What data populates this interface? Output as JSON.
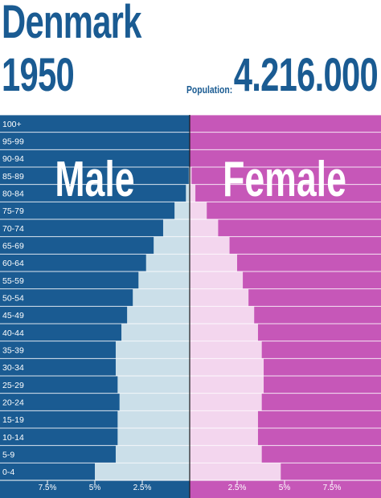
{
  "header": {
    "country": "Denmark",
    "year": "1950",
    "population_label": "Population:",
    "population_value": "4.216.000"
  },
  "colors": {
    "male_bg": "#1a5b92",
    "female_bg": "#c657b8",
    "male_fill": "#cbdfe9",
    "female_fill": "#f3d6ee",
    "gridline": "#ffffff"
  },
  "chart_data": {
    "type": "bar",
    "orientation": "horizontal",
    "layout": "population-pyramid",
    "categories": [
      "0-4",
      "5-9",
      "10-14",
      "15-19",
      "20-24",
      "25-29",
      "30-34",
      "35-39",
      "40-44",
      "45-49",
      "50-54",
      "55-59",
      "60-64",
      "65-69",
      "70-74",
      "75-79",
      "80-84",
      "85-89",
      "90-94",
      "95-99",
      "100+"
    ],
    "series": [
      {
        "name": "Male",
        "side": "left",
        "values": [
          5.0,
          3.9,
          3.8,
          3.8,
          3.7,
          3.8,
          3.9,
          3.9,
          3.6,
          3.3,
          3.0,
          2.7,
          2.3,
          1.9,
          1.4,
          0.8,
          0.2,
          0.05,
          0.01,
          0.0,
          0.0
        ]
      },
      {
        "name": "Female",
        "side": "right",
        "values": [
          4.8,
          3.8,
          3.6,
          3.6,
          3.8,
          3.9,
          3.9,
          3.8,
          3.6,
          3.4,
          3.1,
          2.8,
          2.5,
          2.1,
          1.5,
          0.9,
          0.3,
          0.1,
          0.02,
          0.0,
          0.0
        ]
      }
    ],
    "x_ticks_left": [
      "7.5%",
      "5%",
      "2.5%"
    ],
    "x_ticks_right": [
      "2.5%",
      "5%",
      "7.5%"
    ],
    "x_tick_values": [
      7.5,
      5,
      2.5
    ],
    "xlim": [
      0,
      10
    ],
    "grid": true
  }
}
